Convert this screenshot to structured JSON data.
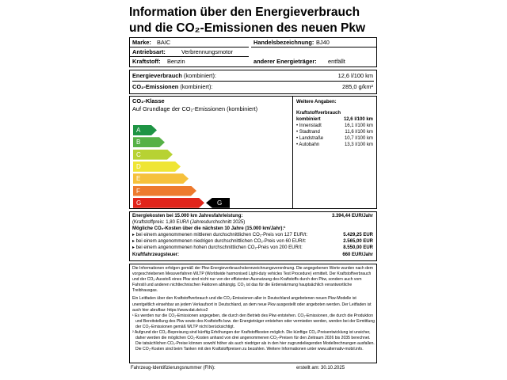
{
  "header": {
    "title": [
      "Information über den Energieverbrauch",
      "und die CO₂-Emissionen des neuen Pkw"
    ]
  },
  "vehicle": {
    "brand_label": "Marke:",
    "brand": "BAIC",
    "model_label": "Handelsbezeichnung:",
    "model": "BJ40",
    "drive_label": "Antriebsart:",
    "drive": "Verbrennungsmotor",
    "fuel_label": "Kraftstoff:",
    "fuel": "Benzin",
    "other_label": "anderer Energieträger:",
    "other": "entfällt"
  },
  "consumption": {
    "energy_label": "Energieverbrauch",
    "energy_qual": "(kombiniert):",
    "energy": "12,6 l/100 km",
    "co2_label": "CO₂-Emissionen",
    "co2_qual": "(kombiniert):",
    "co2": "285,0 g/km²"
  },
  "co2_class": {
    "title": "CO₂-Klasse",
    "subtitle": "Auf Grundlage der CO₂-Emissionen (kombiniert)",
    "classes": [
      "A",
      "B",
      "C",
      "D",
      "E",
      "F",
      "G"
    ],
    "vehicle_class": "G"
  },
  "further": {
    "title": "Weitere Angaben:",
    "subtitle": "Kraftstoffverbrauch",
    "rows": [
      [
        "kombiniert",
        "12,6 l/100 km"
      ],
      [
        "• Innenstadt",
        "16,1 l/100 km"
      ],
      [
        "• Stadtrand",
        "11,6 l/100 km"
      ],
      [
        "• Landstraße",
        "10,7 l/100 km"
      ],
      [
        "• Autobahn",
        "13,3 l/100 km"
      ]
    ]
  },
  "costs": {
    "energy_label": "Energiekosten bei 15.000 km Jahresfahrleistung:",
    "energy": "3.394,44 EUR/Jahr",
    "fuel_price": "(Kraftstoffpreis:     1,80 EUR/l (Jahresdurchschnitt 2025)",
    "co2_title": "Mögliche CO₂-Kosten über die nächsten 10 Jahre (15.000 km/Jahr):¹",
    "rows": [
      [
        "▸ bei einem angenommenen mittleren durchschnittlichen CO₂-Preis von 127 EUR/t:",
        "5.429,25 EUR"
      ],
      [
        "▸ bei einem angenommenen niedrigen durchschnittlichen CO₂-Preis von 60 EUR/t:",
        "2.565,00 EUR"
      ],
      [
        "▸ bei einem angenommenen hohen durchschnittlichen CO₂-Preis von 200 EUR/t:",
        "8.550,00 EUR"
      ]
    ],
    "tax_label": "Kraftfahrzeugsteuer:",
    "tax": "660 EUR/Jahr"
  },
  "notes": [
    "Die Informationen erfolgen gemäß der Pkw-Energieverbrauchskennzeichnungsverordnung. Die angegebenen Werte wurden nach dem vorgeschriebenen Messverfahren WLTP (Worldwide harmonised Light-duty vehicles Test Procedure) ermittelt. Der Kraftstoffverbrauch und der CO₂-Ausstoß eines Pkw sind nicht nur von der effizienten Ausnutzung des Kraftstoffs durch den Pkw, sondern auch vom Fahrstil und anderen nichttechnischen Faktoren abhängig. CO₂ ist das für die Erderwärmung hauptsächlich verantwortliche Treibhausgas.",
    "Ein Leitfaden über den Kraftstoffverbrauch und die CO₂-Emissionen aller in Deutschland angebotenen neuen Pkw-Modelle ist unentgeltlich einsehbar an jedem Verkaufsort in Deutschland, an dem neue Pkw ausgestellt oder angeboten werden. Der Leitfaden ist auch hier abrufbar: https://www.dat.de/co2",
    "¹ Es werden nur die CO₂-Emissionen angegeben, die durch den Betrieb des Pkw entstehen. CO₂-Emissionen, die durch die Produktion und Bereitstellung des Pkw sowie des Kraftstoffs bzw. der Energieträger entstehen oder vermieden werden, werden bei der Ermittlung der CO₂-Emissionen gemäß WLTP nicht berücksichtigt.",
    "² Aufgrund der CO₂-Bepreisung sind künftig Erhöhungen der Kraftstoffkosten möglich. Die künftige CO₂-Preisentwicklung ist unsicher, daher werden die möglichen CO₂-Kosten anhand von drei angenommenen CO₂-Preisen für den Zeitraum 2026 bis 2035 berechnet. Die tatsächlichen CO₂-Preise können sowohl höher als auch niedriger als in den hier zugrundeliegenden Modellrechnungen ausfallen. Die CO₂-Kosten sind beim Tanken mit den Kraftstoffpreisen zu bezahlen. Weitere Informationen unter www.alternativ-mobil.info."
  ],
  "footer": {
    "vin_label": "Fahrzeug-Identifizierungsnummer (FIN):",
    "created": "erstellt am: 30.10.2025"
  }
}
